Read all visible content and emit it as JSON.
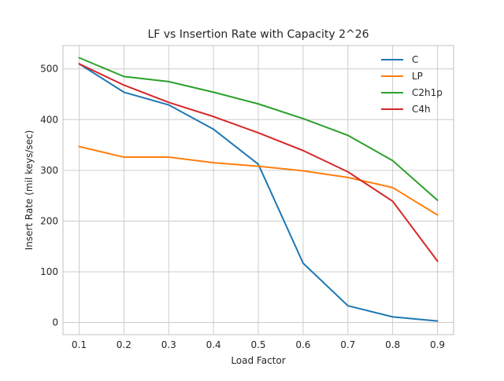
{
  "chart_data": {
    "type": "line",
    "title": "LF vs Insertion Rate with Capacity 2^26",
    "xlabel": "Load Factor",
    "ylabel": "Insert Rate (mil keys/sec)",
    "x": [
      0.1,
      0.2,
      0.3,
      0.4,
      0.5,
      0.6,
      0.7,
      0.8,
      0.9
    ],
    "xlim": [
      0.064,
      0.936
    ],
    "ylim": [
      -24,
      546
    ],
    "x_ticks": [
      "0.1",
      "0.2",
      "0.3",
      "0.4",
      "0.5",
      "0.6",
      "0.7",
      "0.8",
      "0.9"
    ],
    "y_ticks": [
      "0",
      "100",
      "200",
      "300",
      "400",
      "500"
    ],
    "y_tick_values": [
      0,
      100,
      200,
      300,
      400,
      500
    ],
    "grid": true,
    "legend_position": "top-right",
    "series": [
      {
        "name": "C",
        "color": "#1f77b4",
        "values": [
          510,
          454,
          429,
          381,
          312,
          117,
          33,
          11,
          3
        ]
      },
      {
        "name": "LP",
        "color": "#ff7f0e",
        "values": [
          347,
          326,
          326,
          315,
          308,
          299,
          286,
          266,
          212
        ]
      },
      {
        "name": "C2h1p",
        "color": "#2ca02c",
        "values": [
          522,
          485,
          475,
          454,
          431,
          402,
          369,
          319,
          241
        ]
      },
      {
        "name": "C4h",
        "color": "#d62728",
        "values": [
          510,
          468,
          434,
          406,
          374,
          339,
          297,
          239,
          121
        ]
      }
    ]
  }
}
